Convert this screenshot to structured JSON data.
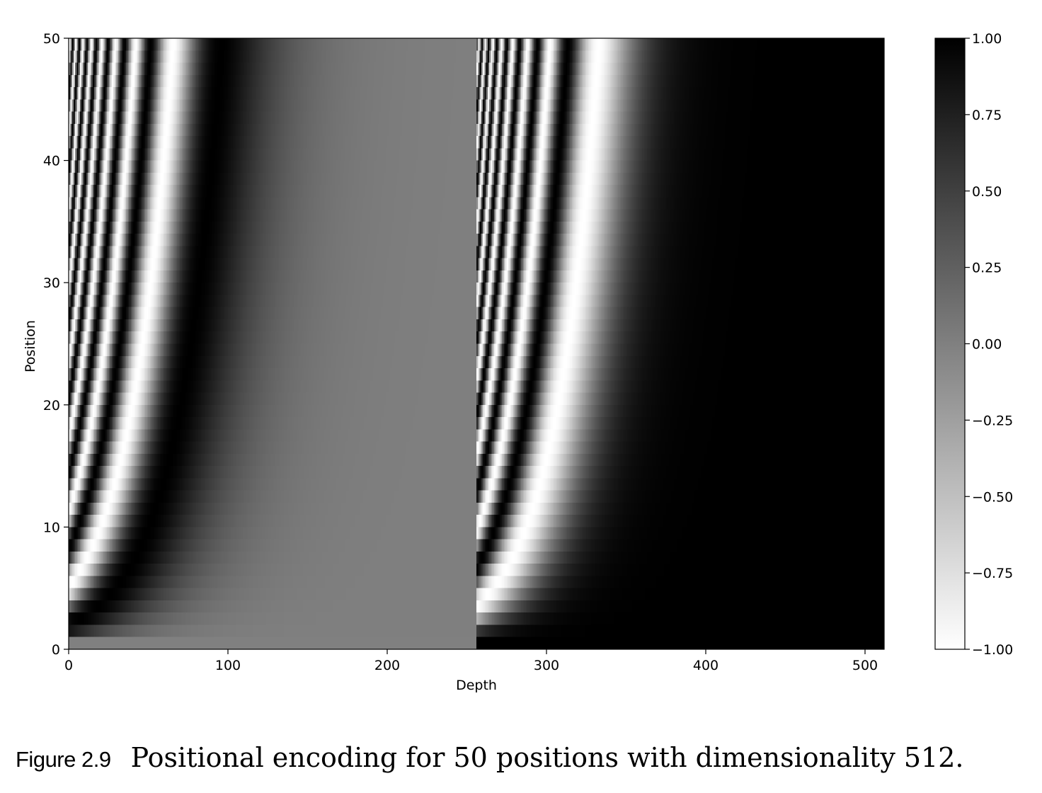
{
  "chart_data": {
    "type": "heatmap",
    "title": "",
    "xlabel": "Depth",
    "ylabel": "Position",
    "xlim": [
      0,
      512
    ],
    "ylim": [
      0,
      50
    ],
    "xticks": [
      0,
      100,
      200,
      300,
      400,
      500
    ],
    "yticks": [
      0,
      10,
      20,
      30,
      40,
      50
    ],
    "rows": 50,
    "cols": 512,
    "formula": "PE(pos, 2i) = sin(pos / 10000^(2i/512)) in depth columns 0–255; PE(pos, 2i+1) = cos(pos / 10000^(2i/512)) in depth columns 256–511",
    "colormap": "gray_r",
    "color_low": "#ffffff",
    "color_high": "#000000",
    "colorbar": {
      "range": [
        -1.0,
        1.0
      ],
      "ticks": [
        "1.00",
        "0.75",
        "0.50",
        "0.25",
        "0.00",
        "−0.25",
        "−0.50",
        "−0.75",
        "−1.00"
      ]
    },
    "grid": false,
    "legend": "none"
  },
  "caption": {
    "label": "Figure 2.9",
    "text": "Positional encoding for 50 positions with dimensionality 512."
  }
}
